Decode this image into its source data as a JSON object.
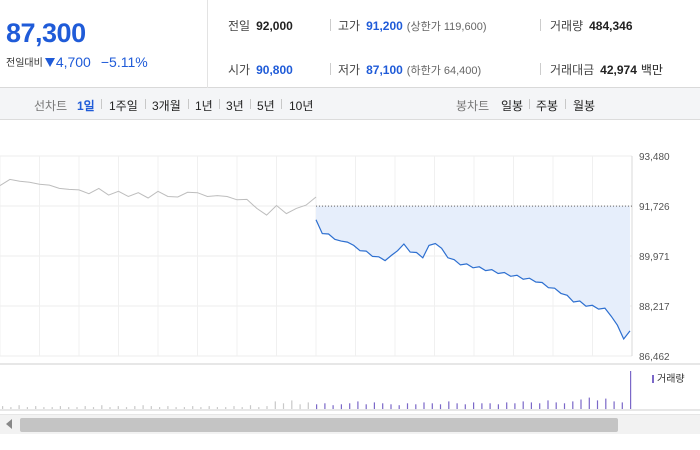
{
  "price": {
    "current": "87,300",
    "change_label": "전일대비",
    "change_value": "4,700",
    "change_pct": "−5.11%"
  },
  "stats": {
    "prev_close": {
      "label": "전일",
      "value": "92,000"
    },
    "high": {
      "label": "고가",
      "value": "91,200",
      "sub": "(상한가 119,600)"
    },
    "volume": {
      "label": "거래량",
      "value": "484,346"
    },
    "open": {
      "label": "시가",
      "value": "90,800"
    },
    "low": {
      "label": "저가",
      "value": "87,100",
      "sub": "(하한가 64,400)"
    },
    "trade_amount": {
      "label": "거래대금",
      "value": "42,974",
      "unit": "백만"
    }
  },
  "toolbar": {
    "line_chart_label": "선차트",
    "periods": [
      "1일",
      "1주일",
      "3개월",
      "1년",
      "3년",
      "5년",
      "10년"
    ],
    "active_period": "1일",
    "candle_label": "봉차트",
    "candle_options": [
      "일봉",
      "주봉",
      "월봉"
    ]
  },
  "chart_data": {
    "type": "line",
    "y_ticks": [
      "93,480",
      "91,726",
      "89,971",
      "88,217",
      "86,462"
    ],
    "ylim": [
      86462,
      93480
    ],
    "reference_line": 92000,
    "volume_legend": "거래량",
    "colors": {
      "today": "#2d6fd0",
      "previous": "#bdbdbd",
      "fill": "#e6eefb",
      "volume": "#7b68c8"
    },
    "previous_day_series": [
      92400,
      92700,
      92550,
      92600,
      92450,
      92500,
      92300,
      92350,
      92250,
      92200,
      92300,
      92150,
      92200,
      92100,
      92150,
      92050,
      92200,
      92100,
      92000,
      92250,
      92150,
      92100,
      92050,
      92100,
      91900,
      92000,
      91600,
      91450,
      91700,
      91500,
      91600,
      91800,
      92000
    ],
    "today_series": [
      91200,
      90800,
      90700,
      90600,
      90450,
      90500,
      90300,
      90200,
      90100,
      90000,
      89900,
      89850,
      89950,
      90200,
      90350,
      90150,
      90050,
      89950,
      90300,
      90450,
      90200,
      89950,
      89800,
      89700,
      89650,
      89600,
      89550,
      89500,
      89450,
      89400,
      89350,
      89300,
      89250,
      89200,
      89150,
      89100,
      89000,
      88900,
      88800,
      88700,
      88550,
      88400,
      88350,
      88250,
      88200,
      88150,
      88100,
      87900,
      87500,
      87100,
      87300
    ],
    "volume_series": [
      3,
      2,
      4,
      2,
      3,
      2,
      2,
      3,
      2,
      2,
      3,
      2,
      4,
      2,
      3,
      2,
      3,
      4,
      3,
      2,
      3,
      2,
      2,
      3,
      2,
      3,
      2,
      2,
      3,
      2,
      4,
      2,
      3,
      8,
      6,
      9,
      5,
      7,
      5,
      6,
      4,
      5,
      6,
      8,
      5,
      7,
      6,
      5,
      4,
      6,
      5,
      7,
      6,
      5,
      8,
      6,
      5,
      7,
      6,
      6,
      5,
      7,
      6,
      8,
      7,
      6,
      9,
      7,
      6,
      8,
      10,
      12,
      9,
      11,
      8,
      7,
      40
    ]
  }
}
